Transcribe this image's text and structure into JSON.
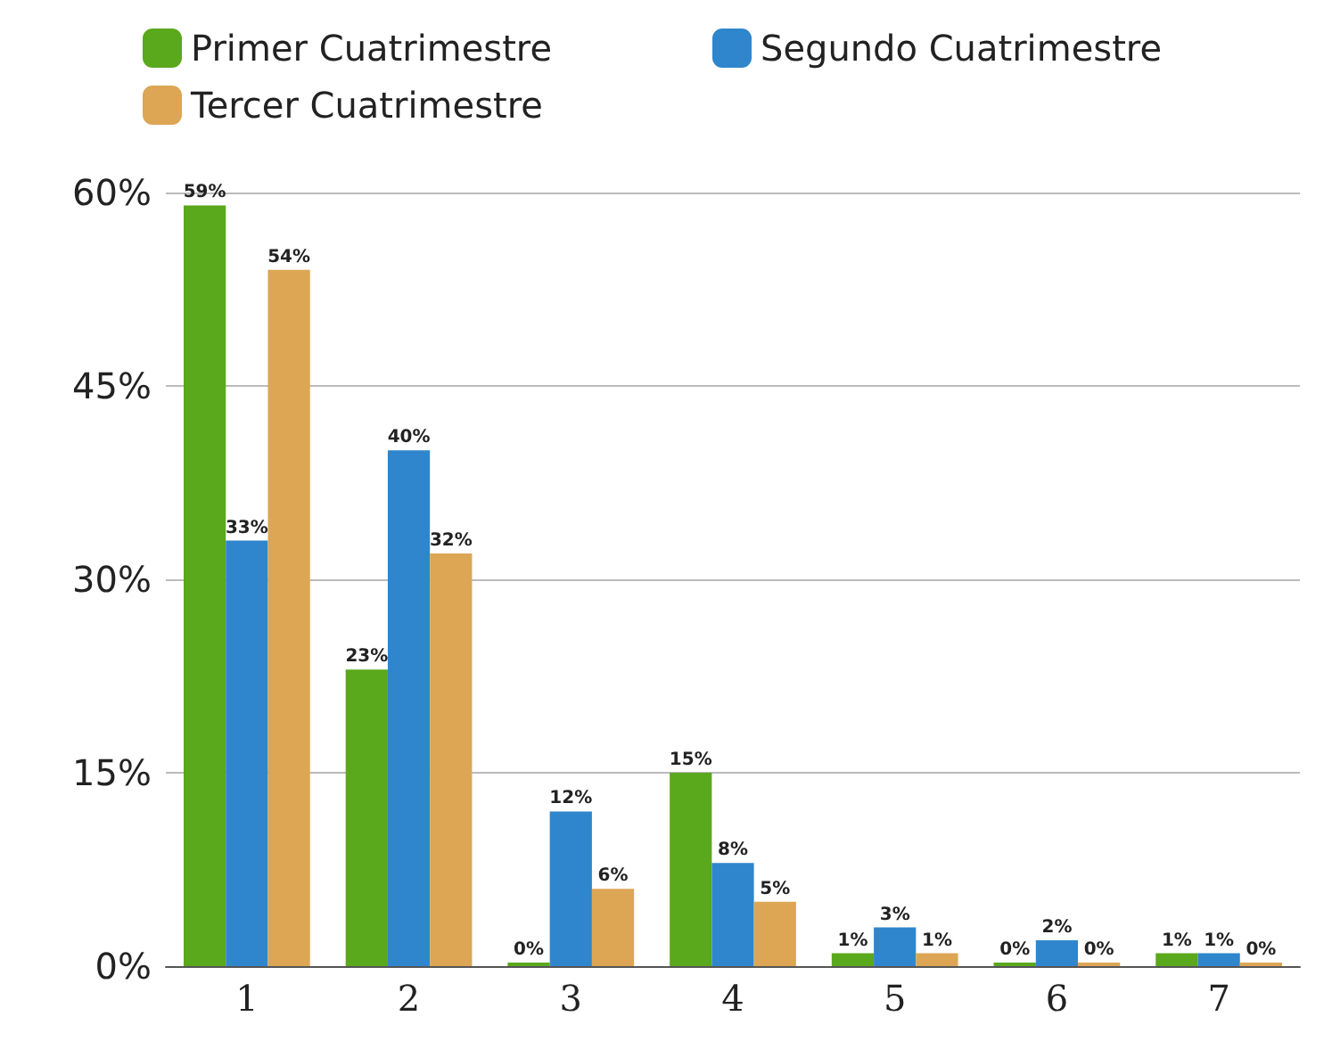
{
  "chart_data": {
    "type": "bar",
    "categories": [
      "1",
      "2",
      "3",
      "4",
      "5",
      "6",
      "7"
    ],
    "series": [
      {
        "name": "Primer Cuatrimestre",
        "color": "#5aa81c",
        "values": [
          59,
          23,
          0,
          15,
          1,
          0,
          1
        ],
        "value_labels": [
          "59%",
          "23%",
          "0%",
          "15%",
          "1%",
          "0%",
          "1%"
        ]
      },
      {
        "name": "Segundo Cuatrimestre",
        "color": "#2f86cc",
        "values": [
          33,
          40,
          12,
          8,
          3,
          2,
          1
        ],
        "value_labels": [
          "33%",
          "40%",
          "12%",
          "8%",
          "3%",
          "2%",
          "1%"
        ]
      },
      {
        "name": "Tercer Cuatrimestre",
        "color": "#dca655",
        "values": [
          54,
          32,
          6,
          5,
          1,
          0,
          0
        ],
        "value_labels": [
          "54%",
          "32%",
          "6%",
          "5%",
          "1%",
          "0%",
          "0%"
        ]
      }
    ],
    "ylim": [
      0,
      60
    ],
    "yticks": [
      {
        "value": 0,
        "label": "0%"
      },
      {
        "value": 15,
        "label": "15%"
      },
      {
        "value": 30,
        "label": "30%"
      },
      {
        "value": 45,
        "label": "45%"
      },
      {
        "value": 60,
        "label": "60%"
      }
    ],
    "grid": "y",
    "legend": "top left"
  }
}
